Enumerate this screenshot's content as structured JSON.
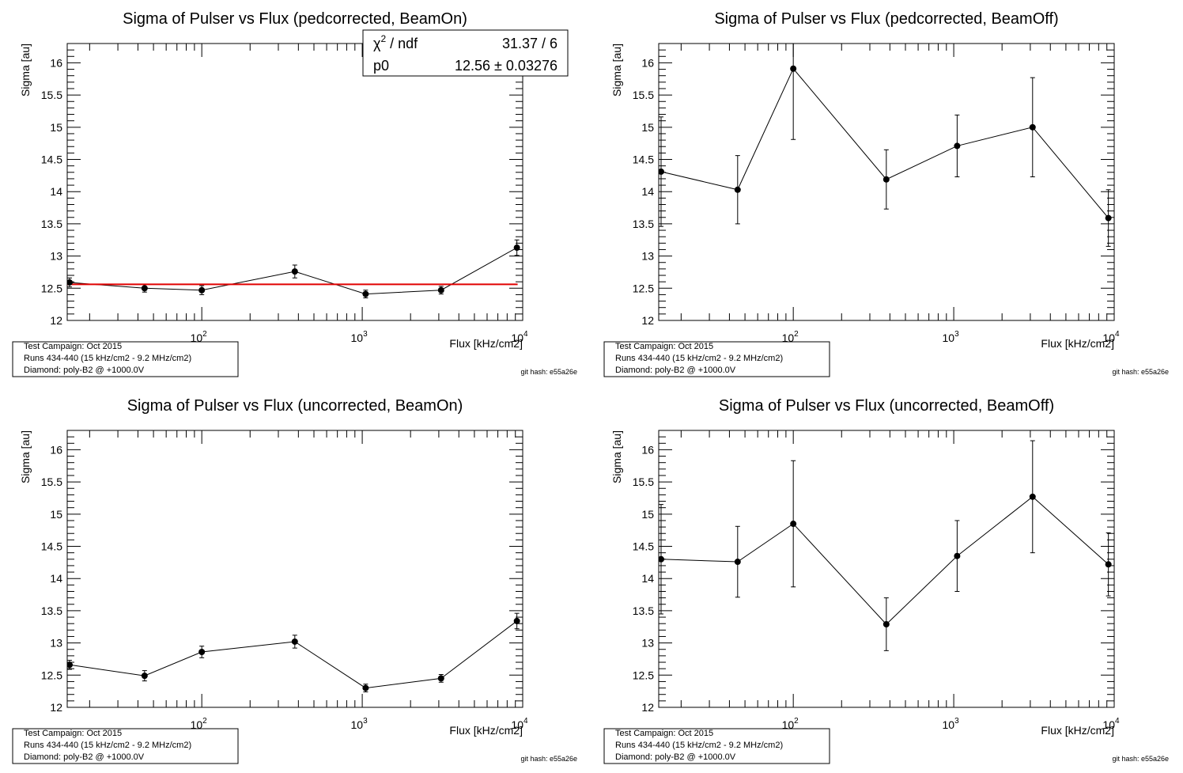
{
  "info": {
    "campaign": "Test Campaign: Oct 2015",
    "runs": "Runs 434-440 (15 kHz/cm2 - 9.2 MHz/cm2)",
    "diamond": "Diamond: poly-B2 @ +1000.0V",
    "git_hash": "git hash: e55a26e"
  },
  "chart_data": [
    {
      "type": "scatter",
      "title": "Sigma of Pulser vs Flux (pedcorrected, BeamOn)",
      "xlabel": "Flux [kHz/cm2]",
      "ylabel": "Sigma [au]",
      "x_scale": "log",
      "xlim": [
        14.5,
        10000
      ],
      "ylim": [
        12,
        16.3
      ],
      "x_ticks": [
        {
          "value": 100,
          "base": "10",
          "exp": "2"
        },
        {
          "value": 1000,
          "base": "10",
          "exp": "3"
        },
        {
          "value": 10000,
          "base": "10",
          "exp": "4"
        }
      ],
      "y_ticks": [
        "12",
        "12.5",
        "13",
        "13.5",
        "14",
        "14.5",
        "15",
        "15.5",
        "16"
      ],
      "series": [
        {
          "x": [
            15,
            44,
            100,
            380,
            1050,
            3100,
            9200
          ],
          "y": [
            12.59,
            12.5,
            12.47,
            12.76,
            12.41,
            12.47,
            13.13
          ],
          "err": [
            0.07,
            0.06,
            0.07,
            0.1,
            0.06,
            0.06,
            0.12
          ],
          "color": "#000000"
        }
      ],
      "fit": {
        "color": "#e00000",
        "value": 12.56
      },
      "stats": {
        "row1_label_sym": "χ",
        "row1_label_sup": "2",
        "row1_label_rest": " / ndf",
        "row1_value": "31.37 / 6",
        "row2_label": "p0",
        "row2_value": "12.56 ± 0.03276"
      }
    },
    {
      "type": "scatter",
      "title": "Sigma of Pulser vs Flux (pedcorrected, BeamOff)",
      "xlabel": "Flux [kHz/cm2]",
      "ylabel": "Sigma [au]",
      "x_scale": "log",
      "xlim": [
        14.5,
        10000
      ],
      "ylim": [
        12,
        16.3
      ],
      "x_ticks": [
        {
          "value": 100,
          "base": "10",
          "exp": "2"
        },
        {
          "value": 1000,
          "base": "10",
          "exp": "3"
        },
        {
          "value": 10000,
          "base": "10",
          "exp": "4"
        }
      ],
      "y_ticks": [
        "12",
        "12.5",
        "13",
        "13.5",
        "14",
        "14.5",
        "15",
        "15.5",
        "16"
      ],
      "series": [
        {
          "x": [
            15,
            45,
            100,
            380,
            1050,
            3100,
            9200
          ],
          "y": [
            14.31,
            14.03,
            15.91,
            14.19,
            14.71,
            15.0,
            13.59
          ],
          "err": [
            0.85,
            0.53,
            1.1,
            0.46,
            0.48,
            0.77,
            0.44
          ],
          "color": "#000000"
        }
      ]
    },
    {
      "type": "scatter",
      "title": "Sigma of Pulser vs Flux (uncorrected, BeamOn)",
      "xlabel": "Flux [kHz/cm2]",
      "ylabel": "Sigma [au]",
      "x_scale": "log",
      "xlim": [
        14.5,
        10000
      ],
      "ylim": [
        12,
        16.3
      ],
      "x_ticks": [
        {
          "value": 100,
          "base": "10",
          "exp": "2"
        },
        {
          "value": 1000,
          "base": "10",
          "exp": "3"
        },
        {
          "value": 10000,
          "base": "10",
          "exp": "4"
        }
      ],
      "y_ticks": [
        "12",
        "12.5",
        "13",
        "13.5",
        "14",
        "14.5",
        "15",
        "15.5",
        "16"
      ],
      "series": [
        {
          "x": [
            15,
            44,
            100,
            380,
            1050,
            3100,
            9200
          ],
          "y": [
            12.66,
            12.49,
            12.86,
            13.02,
            12.3,
            12.45,
            13.34
          ],
          "err": [
            0.07,
            0.08,
            0.09,
            0.1,
            0.06,
            0.06,
            0.12
          ],
          "color": "#000000"
        }
      ]
    },
    {
      "type": "scatter",
      "title": "Sigma of Pulser vs Flux (uncorrected, BeamOff)",
      "xlabel": "Flux [kHz/cm2]",
      "ylabel": "Sigma [au]",
      "x_scale": "log",
      "xlim": [
        14.5,
        10000
      ],
      "ylim": [
        12,
        16.3
      ],
      "x_ticks": [
        {
          "value": 100,
          "base": "10",
          "exp": "2"
        },
        {
          "value": 1000,
          "base": "10",
          "exp": "3"
        },
        {
          "value": 10000,
          "base": "10",
          "exp": "4"
        }
      ],
      "y_ticks": [
        "12",
        "12.5",
        "13",
        "13.5",
        "14",
        "14.5",
        "15",
        "15.5",
        "16"
      ],
      "series": [
        {
          "x": [
            15,
            45,
            100,
            380,
            1050,
            3100,
            9200
          ],
          "y": [
            14.3,
            14.26,
            14.85,
            13.29,
            14.35,
            15.27,
            14.22
          ],
          "err": [
            0.85,
            0.55,
            0.98,
            0.41,
            0.55,
            0.87,
            0.49
          ],
          "color": "#000000"
        }
      ]
    }
  ]
}
